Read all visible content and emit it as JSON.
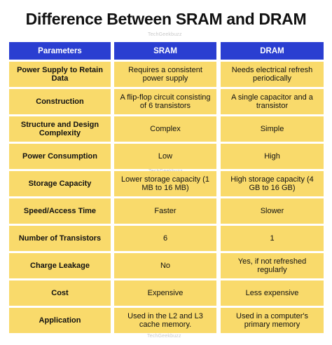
{
  "title": "Difference Between SRAM and DRAM",
  "watermark": "TechGeekbuzz",
  "table": {
    "headers": [
      "Parameters",
      "SRAM",
      "DRAM"
    ],
    "rows": [
      [
        "Power Supply to Retain Data",
        "Requires a consistent power supply",
        "Needs electrical refresh periodically"
      ],
      [
        "Construction",
        "A flip-flop circuit consisting of 6 transistors",
        "A single capacitor and a transistor"
      ],
      [
        "Structure and Design Complexity",
        "Complex",
        "Simple"
      ],
      [
        "Power Consumption",
        "Low",
        "High"
      ],
      [
        "Storage Capacity",
        "Lower storage capacity (1 MB to 16 MB)",
        "High storage capacity (4 GB to 16 GB)"
      ],
      [
        "Speed/Access Time",
        "Faster",
        "Slower"
      ],
      [
        "Number of Transistors",
        "6",
        "1"
      ],
      [
        "Charge Leakage",
        "No",
        "Yes, if not refreshed regularly"
      ],
      [
        "Cost",
        "Expensive",
        "Less expensive"
      ],
      [
        "Application",
        "Used in the L2 and L3 cache memory.",
        "Used in a computer's primary memory"
      ]
    ]
  },
  "colors": {
    "header_bg": "#2a3ed1",
    "cell_bg": "#f9da6b",
    "text": "#111111"
  }
}
